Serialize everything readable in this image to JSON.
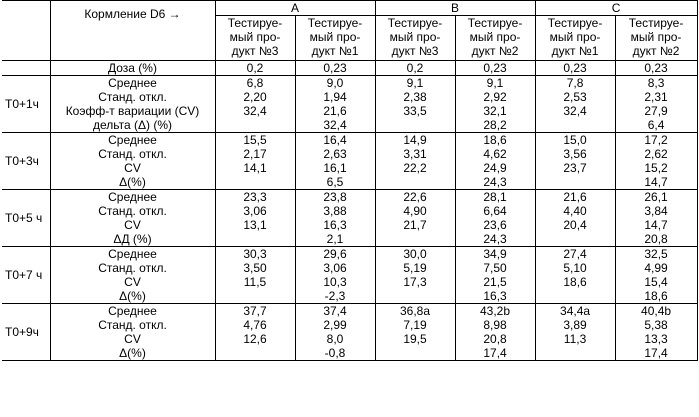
{
  "header": {
    "feed_label": "Кормление D6 →",
    "groups": [
      "A",
      "B",
      "C"
    ],
    "products": [
      "Тестируе-мый про-дукт №3",
      "Тестируе-мый про-дукт №1",
      "Тестируе-мый про-дукт №3",
      "Тестируе-мый про-дукт №2",
      "Тестируе-мый про-дукт №1",
      "Тестируе-мый про-дукт №2"
    ],
    "products_lines": [
      [
        "Тестируе-",
        "мый про-",
        "дукт №3"
      ],
      [
        "Тестируе-",
        "мый про-",
        "дукт №1"
      ],
      [
        "Тестируе-",
        "мый про-",
        "дукт №3"
      ],
      [
        "Тестируе-",
        "мый про-",
        "дукт №2"
      ],
      [
        "Тестируе-",
        "мый про-",
        "дукт №1"
      ],
      [
        "Тестируе-",
        "мый про-",
        "дукт №2"
      ]
    ]
  },
  "dose": {
    "label": "Доза (%)",
    "values": [
      "0,2",
      "0,23",
      "0,2",
      "0,23",
      "0,23",
      "0,23"
    ]
  },
  "blocks": [
    {
      "time": "T0+1ч",
      "labels": [
        "Среднее",
        "Станд. откл.",
        "Коэфф-т вариации (CV)",
        "дельта (Δ) (%)"
      ],
      "cols": [
        [
          "6,8",
          "2,20",
          "32,4",
          ""
        ],
        [
          "9,0",
          "1,94",
          "21,6",
          "32,4"
        ],
        [
          "9,1",
          "2,38",
          "33,5",
          ""
        ],
        [
          "9,1",
          "2,92",
          "32,1",
          "28,2"
        ],
        [
          "7,8",
          "2,53",
          "32,4",
          ""
        ],
        [
          "8,3",
          "2,31",
          "27,9",
          "6,4"
        ]
      ]
    },
    {
      "time": "T0+3ч",
      "labels": [
        "Среднее",
        "Станд. откл.",
        "CV",
        "Δ(%)"
      ],
      "cols": [
        [
          "15,5",
          "2,17",
          "14,1",
          ""
        ],
        [
          "16,4",
          "2,63",
          "16,1",
          "6,5"
        ],
        [
          "14,9",
          "3,31",
          "22,2",
          ""
        ],
        [
          "18,6",
          "4,62",
          "24,9",
          "24,3"
        ],
        [
          "15,0",
          "3,56",
          "23,7",
          ""
        ],
        [
          "17,2",
          "2,62",
          "15,2",
          "14,7"
        ]
      ]
    },
    {
      "time": "T0+5 ч",
      "labels": [
        "Среднее",
        "Станд. откл.",
        "CV",
        "ΔД (%)"
      ],
      "cols": [
        [
          "23,3",
          "3,06",
          "13,1",
          ""
        ],
        [
          "23,8",
          "3,88",
          "16,3",
          "2,1"
        ],
        [
          "22,6",
          "4,90",
          "21,7",
          ""
        ],
        [
          "28,1",
          "6,64",
          "23,6",
          "24,3"
        ],
        [
          "21,6",
          "4,40",
          "20,4",
          ""
        ],
        [
          "26,1",
          "3,84",
          "14,7",
          "20,8"
        ]
      ]
    },
    {
      "time": "T0+7 ч",
      "labels": [
        "Среднее",
        "Станд. откл.",
        "CV",
        "Δ(%)"
      ],
      "cols": [
        [
          "30,3",
          "3,50",
          "11,5",
          ""
        ],
        [
          "29,6",
          "3,06",
          "10,3",
          "-2,3"
        ],
        [
          "30,0",
          "5,19",
          "17,3",
          ""
        ],
        [
          "34,9",
          "7,50",
          "21,5",
          "16,3"
        ],
        [
          "27,4",
          "5,10",
          "18,6",
          ""
        ],
        [
          "32,5",
          "4,99",
          "15,4",
          "18,6"
        ]
      ]
    },
    {
      "time": "T0+9ч",
      "labels": [
        "Среднее",
        "Станд. откл.",
        "CV",
        "Δ(%)"
      ],
      "cols": [
        [
          "37,7",
          "4,76",
          "12,6",
          ""
        ],
        [
          "37,4",
          "2,99",
          "8,0",
          "-0,8"
        ],
        [
          "36,8a",
          "7,19",
          "19,5",
          ""
        ],
        [
          "43,2b",
          "8,98",
          "20,8",
          "17,4"
        ],
        [
          "34,4a",
          "3,89",
          "11,3",
          ""
        ],
        [
          "40,4b",
          "5,38",
          "13,3",
          "17,4"
        ]
      ]
    }
  ]
}
